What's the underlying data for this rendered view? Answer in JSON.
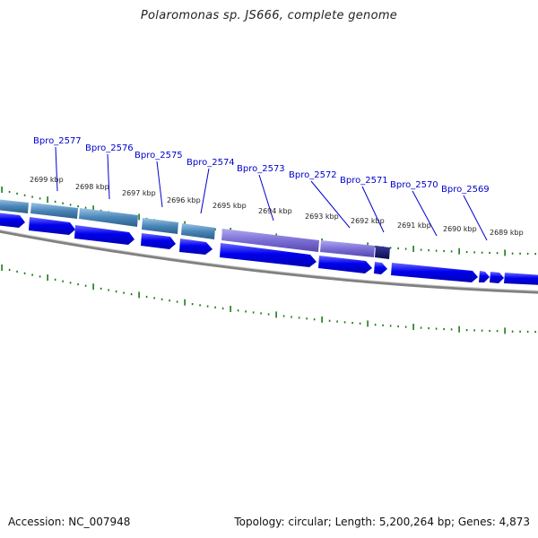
{
  "title": "Polaromonas sp. JS666, complete genome",
  "footer": {
    "accession": "Accession: NC_007948",
    "summary": "Topology: circular; Length: 5,200,264 bp; Genes: 4,873"
  },
  "colors": {
    "forward_strand_gene": "#4a86b8",
    "highlight_gene": "#7b6fd6",
    "dark_gene": "#101060",
    "reverse_strand_gene": "#0000ee",
    "backbone": "#808080",
    "tick": "#1a7a1a",
    "label": "#0000cc"
  },
  "gene_labels": [
    "Bpro_2577",
    "Bpro_2576",
    "Bpro_2575",
    "Bpro_2574",
    "Bpro_2573",
    "Bpro_2572",
    "Bpro_2571",
    "Bpro_2570",
    "Bpro_2569"
  ],
  "kbp_labels": [
    "2699 kbp",
    "2698 kbp",
    "2697 kbp",
    "2696 kbp",
    "2695 kbp",
    "2694 kbp",
    "2693 kbp",
    "2692 kbp",
    "2691 kbp",
    "2690 kbp",
    "2689 kbp"
  ]
}
